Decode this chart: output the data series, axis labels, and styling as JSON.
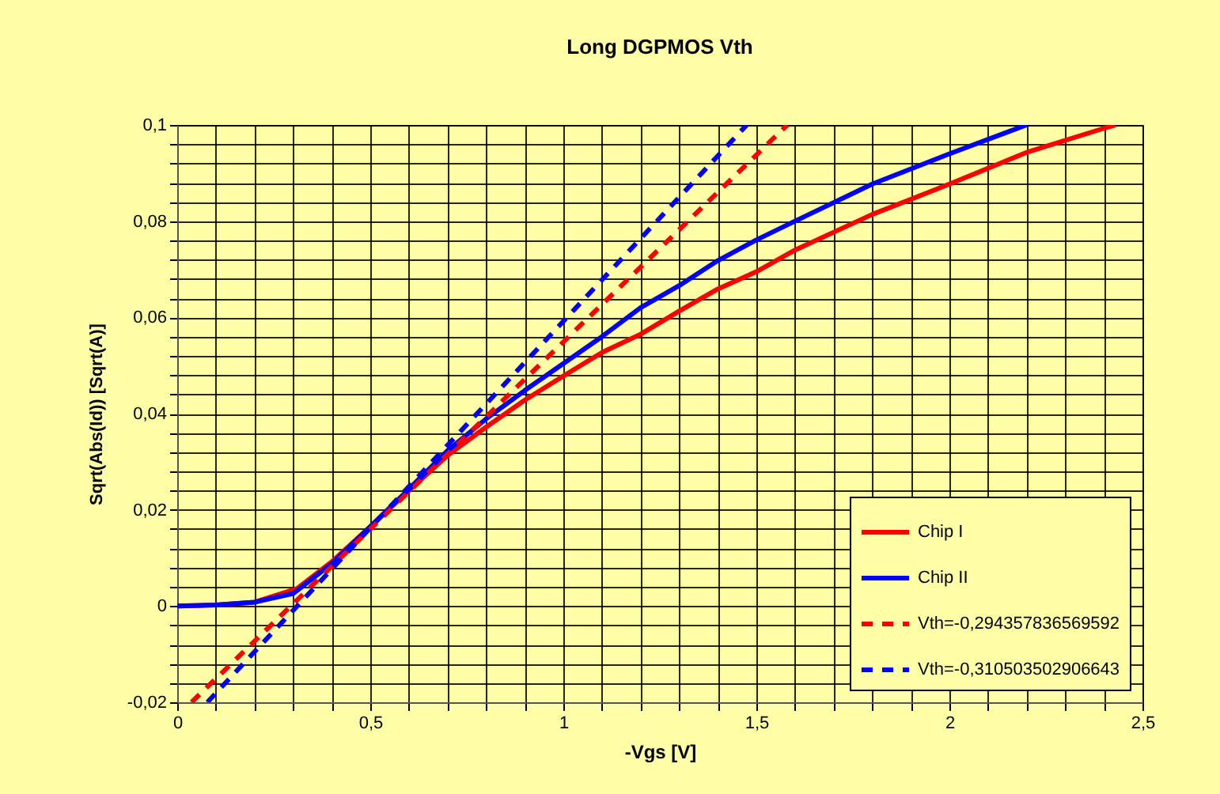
{
  "chart_data": {
    "type": "line",
    "title": "Long DGPMOS Vth",
    "xlabel": "-Vgs [V]",
    "ylabel": "Sqrt(Abs(Id)) [Sqrt(A)]",
    "xlim": [
      0,
      2.5
    ],
    "xticks": [
      0,
      {
        "value": 0.1,
        "label": null
      },
      {
        "value": 0.2,
        "label": null
      },
      {
        "value": 0.3,
        "label": null
      },
      {
        "value": 0.4,
        "label": null
      },
      {
        "value": 0.5,
        "label": "0,5"
      },
      {
        "value": 0.6,
        "label": null
      },
      {
        "value": 0.7,
        "label": null
      },
      {
        "value": 0.8,
        "label": null
      },
      {
        "value": 0.9,
        "label": null
      },
      1,
      {
        "value": 1.1,
        "label": null
      },
      {
        "value": 1.2,
        "label": null
      },
      {
        "value": 1.3,
        "label": null
      },
      {
        "value": 1.4,
        "label": null
      },
      {
        "value": 1.5,
        "label": "1,5"
      },
      {
        "value": 1.6,
        "label": null
      },
      {
        "value": 1.7,
        "label": null
      },
      {
        "value": 1.8,
        "label": null
      },
      {
        "value": 1.9,
        "label": null
      },
      2,
      {
        "value": 2.1,
        "label": null
      },
      {
        "value": 2.2,
        "label": null
      },
      {
        "value": 2.3,
        "label": null
      },
      {
        "value": 2.4,
        "label": null
      },
      {
        "value": 2.5,
        "label": "2,5"
      }
    ],
    "ylim": [
      -0.02,
      0.1
    ],
    "yticks": [
      {
        "value": -0.02,
        "label": "-0,02"
      },
      {
        "value": -0.016,
        "label": null
      },
      {
        "value": -0.012,
        "label": null
      },
      {
        "value": -0.008,
        "label": null
      },
      {
        "value": -0.004,
        "label": null
      },
      0,
      {
        "value": 0.004,
        "label": null
      },
      {
        "value": 0.008,
        "label": null
      },
      {
        "value": 0.012,
        "label": null
      },
      {
        "value": 0.016,
        "label": null
      },
      {
        "value": 0.02,
        "label": "0,02"
      },
      {
        "value": 0.024,
        "label": null
      },
      {
        "value": 0.028,
        "label": null
      },
      {
        "value": 0.032,
        "label": null
      },
      {
        "value": 0.036,
        "label": null
      },
      {
        "value": 0.04,
        "label": "0,04"
      },
      {
        "value": 0.044,
        "label": null
      },
      {
        "value": 0.048,
        "label": null
      },
      {
        "value": 0.052,
        "label": null
      },
      {
        "value": 0.056,
        "label": null
      },
      {
        "value": 0.06,
        "label": "0,06"
      },
      {
        "value": 0.064,
        "label": null
      },
      {
        "value": 0.068,
        "label": null
      },
      {
        "value": 0.072,
        "label": null
      },
      {
        "value": 0.076,
        "label": null
      },
      {
        "value": 0.08,
        "label": "0,08"
      },
      {
        "value": 0.084,
        "label": null
      },
      {
        "value": 0.088,
        "label": null
      },
      {
        "value": 0.092,
        "label": null
      },
      {
        "value": 0.096,
        "label": null
      },
      {
        "value": 0.1,
        "label": "0,1"
      }
    ],
    "grid": true,
    "legend": "bottom right",
    "marker": "none",
    "series": [
      {
        "name": "Chip I",
        "color": "#ff0000",
        "line_style": "solid",
        "x": [
          0,
          0.1,
          0.2,
          0.31,
          0.4,
          0.5,
          0.6,
          0.7,
          0.8,
          0.9,
          1.0,
          1.1,
          1.2,
          1.3,
          1.4,
          1.5,
          1.6,
          1.8,
          2.0,
          2.2,
          2.4,
          2.43
        ],
        "values": [
          0,
          0.0002,
          0.0008,
          0.0036,
          0.0092,
          0.0165,
          0.024,
          0.0313,
          0.0372,
          0.0428,
          0.0478,
          0.0527,
          0.0565,
          0.0613,
          0.0659,
          0.0695,
          0.074,
          0.0814,
          0.0877,
          0.0943,
          0.0993,
          0.1
        ]
      },
      {
        "name": "Chip II",
        "color": "#0000ff",
        "line_style": "solid",
        "x": [
          0,
          0.1,
          0.2,
          0.3,
          0.4,
          0.5,
          0.6,
          0.7,
          0.8,
          0.9,
          1.0,
          1.1,
          1.2,
          1.3,
          1.4,
          1.5,
          1.6,
          1.8,
          2.0,
          2.2
        ],
        "values": [
          0,
          0.0002,
          0.0008,
          0.0026,
          0.0088,
          0.0165,
          0.0243,
          0.0323,
          0.0389,
          0.0448,
          0.0504,
          0.056,
          0.062,
          0.0666,
          0.0718,
          0.0761,
          0.08,
          0.0877,
          0.094,
          0.1
        ]
      },
      {
        "name": "Vth=-0,294357836569592",
        "color": "#ff0000",
        "line_style": "dashed",
        "x": [
          0.037,
          1.58
        ],
        "values": [
          -0.02,
          0.1
        ]
      },
      {
        "name": "Vth=-0,310503502906643",
        "color": "#0000ff",
        "line_style": "dashed",
        "x": [
          0.078,
          1.475
        ],
        "values": [
          -0.02,
          0.1
        ]
      }
    ]
  }
}
